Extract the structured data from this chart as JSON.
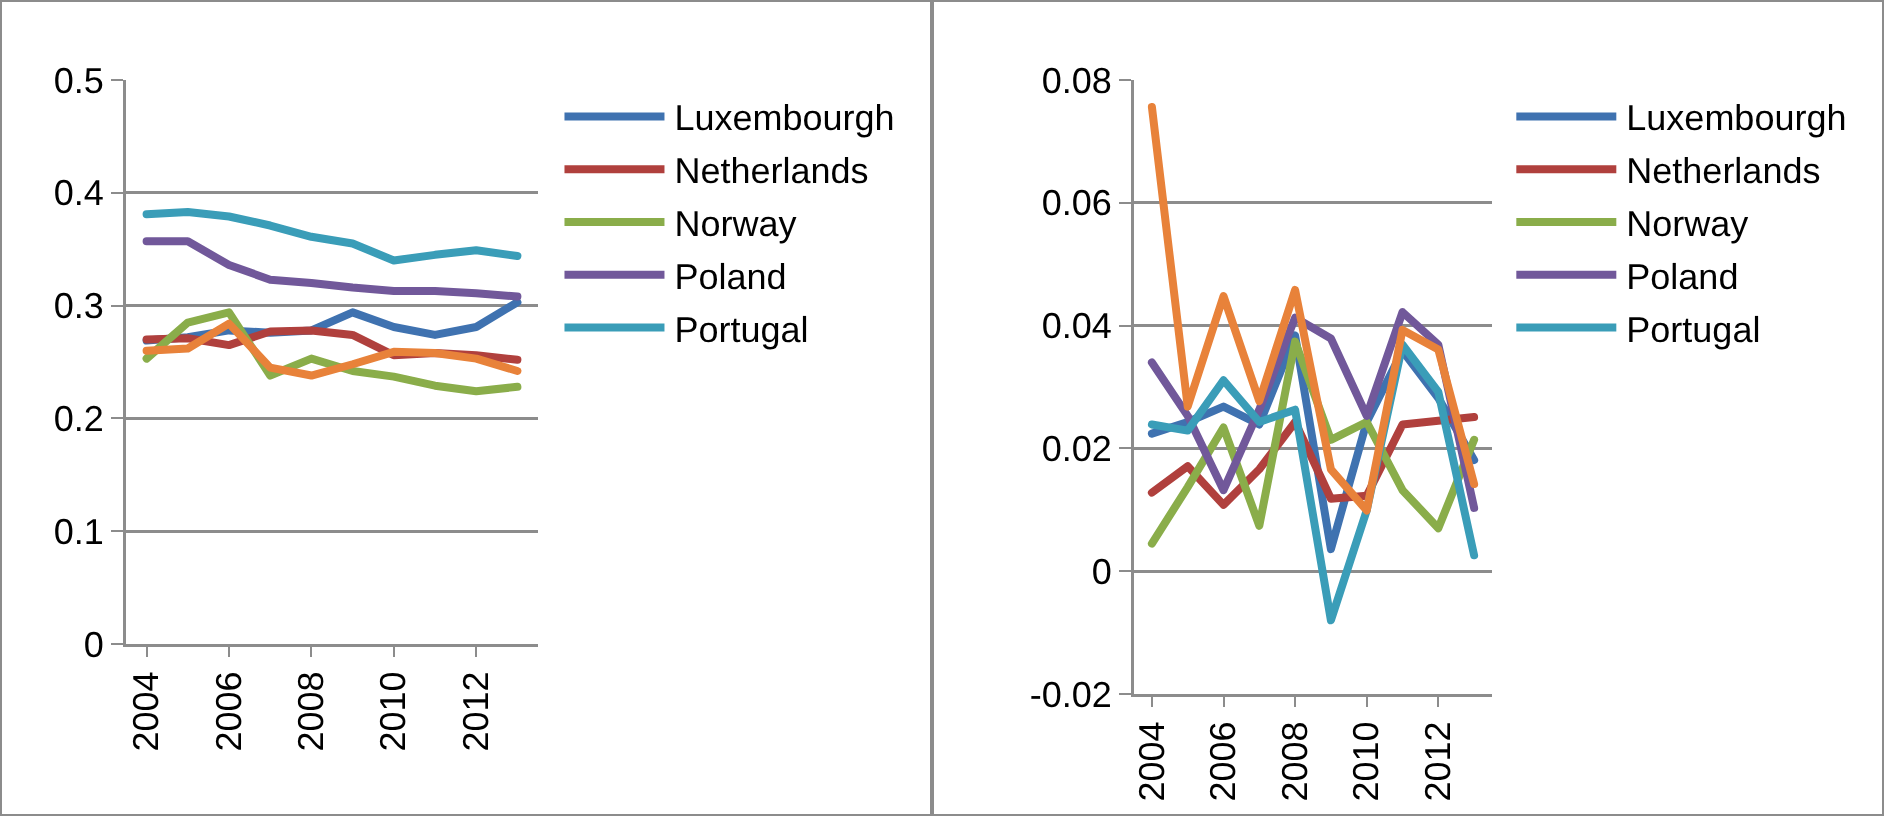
{
  "chart_data": [
    {
      "type": "line",
      "x": [
        2004,
        2005,
        2006,
        2007,
        2008,
        2009,
        2010,
        2011,
        2012,
        2013
      ],
      "xlim": [
        2003.5,
        2013.5
      ],
      "xticks": [
        2004,
        2006,
        2008,
        2010,
        2012
      ],
      "ylim": [
        0,
        0.5
      ],
      "yticks": [
        0,
        0.1,
        0.2,
        0.3,
        0.4,
        0.5
      ],
      "grid": "y",
      "legend": "right",
      "marker": "none",
      "line_style": "solid",
      "series": [
        {
          "name": "Luxembourgh",
          "color": "#3f72b0",
          "values": [
            0.269,
            0.272,
            0.278,
            0.276,
            0.278,
            0.294,
            0.281,
            0.274,
            0.281,
            0.303
          ]
        },
        {
          "name": "Netherlands",
          "color": "#b0403d",
          "values": [
            0.27,
            0.271,
            0.265,
            0.277,
            0.278,
            0.274,
            0.256,
            0.258,
            0.256,
            0.252
          ]
        },
        {
          "name": "Norway",
          "color": "#8aad4a",
          "values": [
            0.253,
            0.285,
            0.294,
            0.238,
            0.253,
            0.242,
            0.237,
            0.229,
            0.224,
            0.228
          ]
        },
        {
          "name": "Poland",
          "color": "#71589a",
          "values": [
            0.357,
            0.357,
            0.336,
            0.323,
            0.32,
            0.316,
            0.313,
            0.313,
            0.311,
            0.308
          ]
        },
        {
          "name": "Portugal",
          "color": "#3a9db8",
          "values": [
            0.381,
            0.383,
            0.379,
            0.371,
            0.361,
            0.355,
            0.34,
            0.345,
            0.349,
            0.344
          ]
        },
        {
          "color": "#e8823a",
          "values": [
            0.26,
            0.262,
            0.284,
            0.245,
            0.238,
            0.248,
            0.259,
            0.258,
            0.253,
            0.242
          ]
        }
      ]
    },
    {
      "type": "line",
      "x": [
        2004,
        2005,
        2006,
        2007,
        2008,
        2009,
        2010,
        2011,
        2012,
        2013
      ],
      "xlim": [
        2003.5,
        2013.5
      ],
      "xticks": [
        2004,
        2006,
        2008,
        2010,
        2012
      ],
      "ylim": [
        -0.02,
        0.08
      ],
      "yticks": [
        -0.02,
        0,
        0.02,
        0.04,
        0.06,
        0.08
      ],
      "grid": "y",
      "legend": "right",
      "marker": "none",
      "line_style": "solid",
      "series": [
        {
          "name": "Luxembourgh",
          "color": "#3f72b0",
          "values": [
            0.0224,
            0.0243,
            0.0268,
            0.0239,
            0.0384,
            0.0036,
            0.0243,
            0.0359,
            0.0282,
            0.0181
          ]
        },
        {
          "name": "Netherlands",
          "color": "#b0403d",
          "values": [
            0.0128,
            0.0171,
            0.0108,
            0.0166,
            0.0243,
            0.0118,
            0.0123,
            0.0239,
            0.0245,
            0.0251
          ]
        },
        {
          "name": "Norway",
          "color": "#8aad4a",
          "values": [
            0.0045,
            0.0137,
            0.0234,
            0.0074,
            0.0374,
            0.0214,
            0.0243,
            0.0132,
            0.007,
            0.0214
          ]
        },
        {
          "name": "Poland",
          "color": "#71589a",
          "values": [
            0.034,
            0.0253,
            0.0132,
            0.0263,
            0.0413,
            0.0379,
            0.0253,
            0.0422,
            0.0369,
            0.0103
          ]
        },
        {
          "name": "Portugal",
          "color": "#3a9db8",
          "values": [
            0.0239,
            0.0229,
            0.0311,
            0.0243,
            0.0263,
            -0.008,
            0.0099,
            0.0369,
            0.0292,
            0.0026
          ]
        },
        {
          "color": "#e8823a",
          "values": [
            0.0756,
            0.0268,
            0.0448,
            0.0277,
            0.0458,
            0.0166,
            0.0099,
            0.0393,
            0.0361,
            0.0142
          ]
        }
      ]
    }
  ]
}
